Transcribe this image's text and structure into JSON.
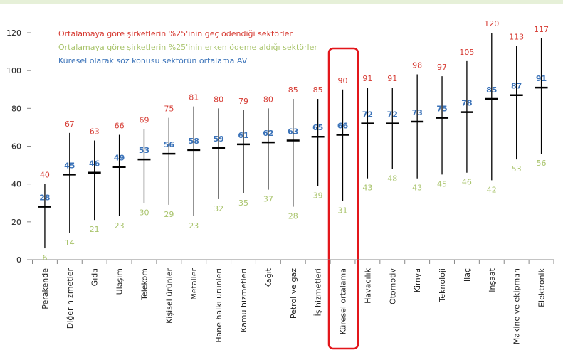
{
  "chart_data": {
    "type": "range",
    "categories": [
      "Perakende",
      "Diğer hizmetler",
      "Gıda",
      "Ulaşım",
      "Telekom",
      "Kişisel ürünler",
      "Metaller",
      "Hane halkı ürünleri",
      "Kamu hizmetleri",
      "Kağıt",
      "Petrol ve gaz",
      "İş hizmetleri",
      "Küresel ortalama",
      "Havacılık",
      "Otomotiv",
      "Kimya",
      "Teknoloji",
      "İlaç",
      "İnşaat",
      "Makine ve ekipman",
      "Elektronik"
    ],
    "series": [
      {
        "name": "Ortalamaya göre şirketlerin %25'inin geç ödendiği sektörler",
        "color": "#d63a32",
        "values": [
          40,
          67,
          63,
          66,
          69,
          75,
          81,
          80,
          79,
          80,
          85,
          85,
          90,
          91,
          91,
          98,
          97,
          105,
          120,
          113,
          117
        ]
      },
      {
        "name": "Ortalamaya göre şirketlerin %25'inin erken ödeme aldığı sektörler",
        "color": "#a9c46c",
        "values": [
          6,
          14,
          21,
          23,
          30,
          29,
          23,
          32,
          35,
          37,
          28,
          39,
          31,
          43,
          48,
          43,
          45,
          46,
          42,
          53,
          56
        ]
      },
      {
        "name": "Küresel olarak söz konusu sektörün ortalama AV",
        "color": "#3b73b9",
        "values": [
          28,
          45,
          46,
          49,
          53,
          56,
          58,
          59,
          61,
          62,
          63,
          65,
          66,
          72,
          72,
          73,
          75,
          78,
          85,
          87,
          91
        ]
      }
    ],
    "ylim": [
      0,
      120
    ],
    "yticks": [
      0,
      20,
      40,
      60,
      80,
      100,
      120
    ]
  }
}
